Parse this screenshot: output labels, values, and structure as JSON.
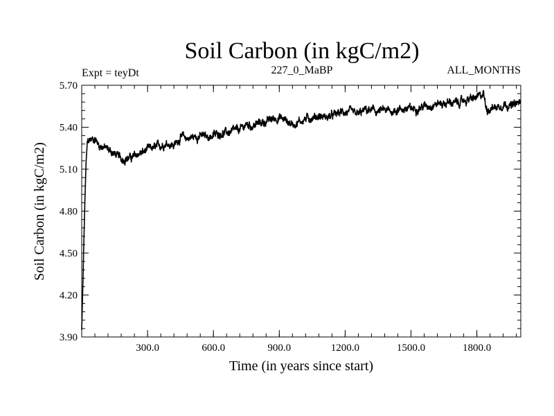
{
  "chart_data": {
    "type": "line",
    "title": "Soil Carbon (in kgC/m2)",
    "subtitle_left": "Expt = teyDt",
    "subtitle_center": "227_0_MaBP",
    "subtitle_right": "ALL_MONTHS",
    "xlabel": "Time (in years since start)",
    "ylabel": "Soil Carbon (in kgC/m2)",
    "xlim": [
      0,
      2000
    ],
    "ylim": [
      3.9,
      5.7
    ],
    "xticks": [
      300,
      600,
      900,
      1200,
      1500,
      1800
    ],
    "xtick_labels": [
      "300.0",
      "600.0",
      "900.0",
      "1200.0",
      "1500.0",
      "1800.0"
    ],
    "yticks": [
      3.9,
      4.2,
      4.5,
      4.8,
      5.1,
      5.4,
      5.7
    ],
    "ytick_labels": [
      "3.90",
      "4.20",
      "4.50",
      "4.80",
      "5.10",
      "5.40",
      "5.70"
    ],
    "x_minor_step": 60,
    "y_minor_step": 0.06,
    "noise_amplitude": 0.035,
    "series": [
      {
        "name": "Soil Carbon",
        "color": "#000000",
        "x": [
          0,
          5,
          10,
          15,
          20,
          25,
          30,
          40,
          60,
          80,
          100,
          120,
          140,
          160,
          180,
          200,
          220,
          240,
          260,
          280,
          300,
          330,
          360,
          390,
          420,
          450,
          480,
          510,
          540,
          570,
          600,
          630,
          660,
          690,
          720,
          750,
          780,
          810,
          840,
          870,
          900,
          930,
          960,
          990,
          1020,
          1050,
          1080,
          1110,
          1140,
          1170,
          1200,
          1230,
          1260,
          1290,
          1320,
          1350,
          1380,
          1410,
          1440,
          1470,
          1500,
          1530,
          1560,
          1590,
          1620,
          1650,
          1680,
          1710,
          1740,
          1770,
          1800,
          1820,
          1830,
          1840,
          1850,
          1870,
          1900,
          1930,
          1960,
          2000
        ],
        "values": [
          3.95,
          4.25,
          4.6,
          4.9,
          5.15,
          5.28,
          5.3,
          5.31,
          5.32,
          5.27,
          5.26,
          5.24,
          5.22,
          5.2,
          5.17,
          5.18,
          5.18,
          5.19,
          5.21,
          5.22,
          5.24,
          5.25,
          5.27,
          5.29,
          5.27,
          5.33,
          5.32,
          5.33,
          5.34,
          5.33,
          5.34,
          5.36,
          5.36,
          5.37,
          5.38,
          5.42,
          5.41,
          5.43,
          5.44,
          5.46,
          5.47,
          5.45,
          5.42,
          5.44,
          5.46,
          5.47,
          5.48,
          5.47,
          5.48,
          5.5,
          5.51,
          5.5,
          5.49,
          5.52,
          5.52,
          5.51,
          5.52,
          5.51,
          5.53,
          5.53,
          5.53,
          5.54,
          5.55,
          5.56,
          5.57,
          5.57,
          5.58,
          5.57,
          5.59,
          5.6,
          5.61,
          5.62,
          5.65,
          5.55,
          5.53,
          5.54,
          5.55,
          5.57,
          5.55,
          5.58
        ]
      }
    ]
  }
}
